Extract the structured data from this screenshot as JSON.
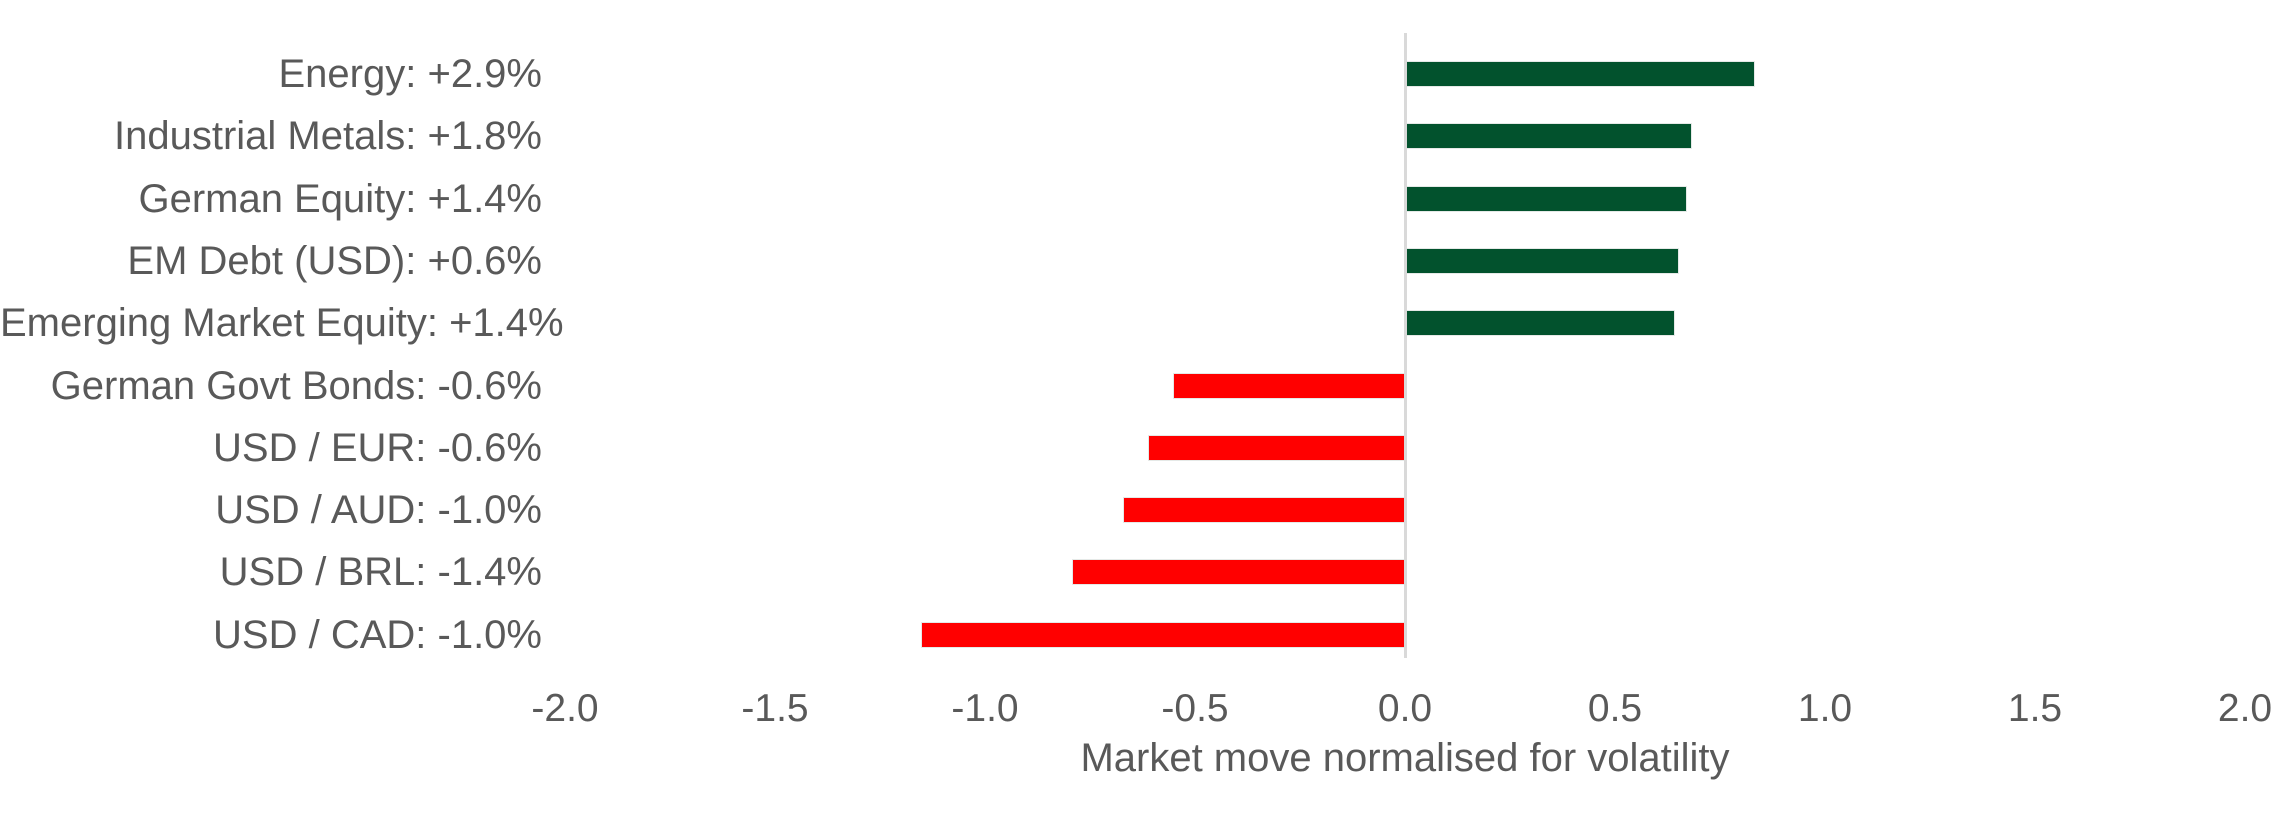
{
  "chart_data": {
    "type": "bar",
    "orientation": "horizontal",
    "xlabel": "Market move normalised for volatility",
    "ylabel": "",
    "xlim": [
      -2.0,
      2.0
    ],
    "x_ticks": [
      -2.0,
      -1.5,
      -1.0,
      -0.5,
      0.0,
      0.5,
      1.0,
      1.5,
      2.0
    ],
    "x_tick_labels": [
      "-2.0",
      "-1.5",
      "-1.0",
      "-0.5",
      "0.0",
      "0.5",
      "1.0",
      "1.5",
      "2.0"
    ],
    "grid": "off",
    "legend": "none",
    "zero_line": true,
    "bars": [
      {
        "label": "Energy: +2.9%",
        "asset": "Energy",
        "move": "+2.9%",
        "value": 0.83,
        "direction": "positive"
      },
      {
        "label": "Industrial Metals: +1.8%",
        "asset": "Industrial Metals",
        "move": "+1.8%",
        "value": 0.68,
        "direction": "positive"
      },
      {
        "label": "German Equity: +1.4%",
        "asset": "German Equity",
        "move": "+1.4%",
        "value": 0.67,
        "direction": "positive"
      },
      {
        "label": "EM Debt (USD): +0.6%",
        "asset": "EM Debt (USD)",
        "move": "+0.6%",
        "value": 0.65,
        "direction": "positive"
      },
      {
        "label": "Emerging Market Equity: +1.4%",
        "asset": "Emerging Market Equity",
        "move": "+1.4%",
        "value": 0.64,
        "direction": "positive"
      },
      {
        "label": "German Govt Bonds: -0.6%",
        "asset": "German Govt Bonds",
        "move": "-0.6%",
        "value": -0.55,
        "direction": "negative"
      },
      {
        "label": "USD / EUR: -0.6%",
        "asset": "USD / EUR",
        "move": "-0.6%",
        "value": -0.61,
        "direction": "negative"
      },
      {
        "label": "USD / AUD: -1.0%",
        "asset": "USD / AUD",
        "move": "-1.0%",
        "value": -0.67,
        "direction": "negative"
      },
      {
        "label": "USD / BRL: -1.4%",
        "asset": "USD / BRL",
        "move": "-1.4%",
        "value": -0.79,
        "direction": "negative"
      },
      {
        "label": "USD / CAD: -1.0%",
        "asset": "USD / CAD",
        "move": "-1.0%",
        "value": -1.15,
        "direction": "negative"
      }
    ]
  },
  "colors": {
    "positive_bar": "#02522D",
    "negative_bar": "#FF0000",
    "text": "#595959",
    "zero_line": "#D9D9D9",
    "background": "#FFFFFF"
  }
}
